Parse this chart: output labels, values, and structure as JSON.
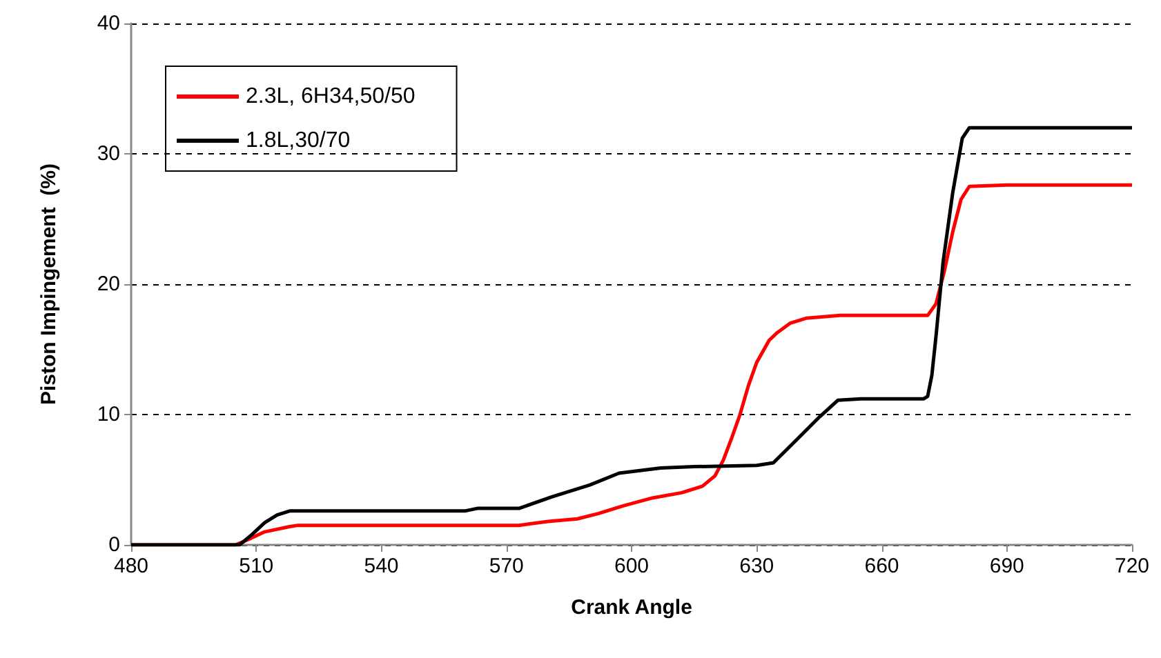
{
  "chart_data": {
    "type": "line",
    "xlabel": "Crank Angle",
    "ylabel": "Piston Impingement  (%)",
    "xlim": [
      480,
      720
    ],
    "xticks": [
      480,
      510,
      540,
      570,
      600,
      630,
      660,
      690,
      720
    ],
    "ylim": [
      0,
      40
    ],
    "yticks": [
      0,
      10,
      20,
      30,
      40
    ],
    "grid": "y",
    "legend": "top left",
    "marker": "none",
    "line_style": "solid",
    "series": [
      {
        "name": "2.3L, 6H34,50/50",
        "color": "#ff0000",
        "x": [
          480,
          505,
          508,
          512,
          518,
          520,
          573,
          580,
          587,
          592,
          598,
          605,
          612,
          617,
          620,
          622,
          624,
          626,
          628,
          630,
          633,
          635,
          638,
          642,
          650,
          671,
          673,
          675,
          677,
          679,
          681,
          690,
          720
        ],
        "values": [
          0,
          0,
          0.4,
          1.0,
          1.4,
          1.5,
          1.5,
          1.8,
          2.0,
          2.4,
          3.0,
          3.6,
          4.0,
          4.5,
          5.3,
          6.5,
          8.2,
          10,
          12.2,
          14,
          15.7,
          16.3,
          17.0,
          17.4,
          17.6,
          17.6,
          18.5,
          21,
          24,
          26.5,
          27.5,
          27.6,
          27.6
        ]
      },
      {
        "name": "1.8L,30/70",
        "color": "#000000",
        "x": [
          480,
          506,
          509,
          512,
          515,
          518,
          520,
          560,
          563,
          573,
          581,
          590,
          597,
          607,
          615,
          630,
          634,
          640,
          645,
          649.5,
          655,
          670,
          671,
          672,
          673,
          674.7,
          677,
          679.3,
          681,
          690,
          720
        ],
        "values": [
          0,
          0,
          0.8,
          1.7,
          2.3,
          2.6,
          2.6,
          2.6,
          2.8,
          2.8,
          3.7,
          4.6,
          5.5,
          5.9,
          6.0,
          6.1,
          6.3,
          8.2,
          9.8,
          11.1,
          11.2,
          11.2,
          11.4,
          13,
          16,
          21.7,
          27,
          31.2,
          32,
          32,
          32
        ]
      }
    ]
  }
}
